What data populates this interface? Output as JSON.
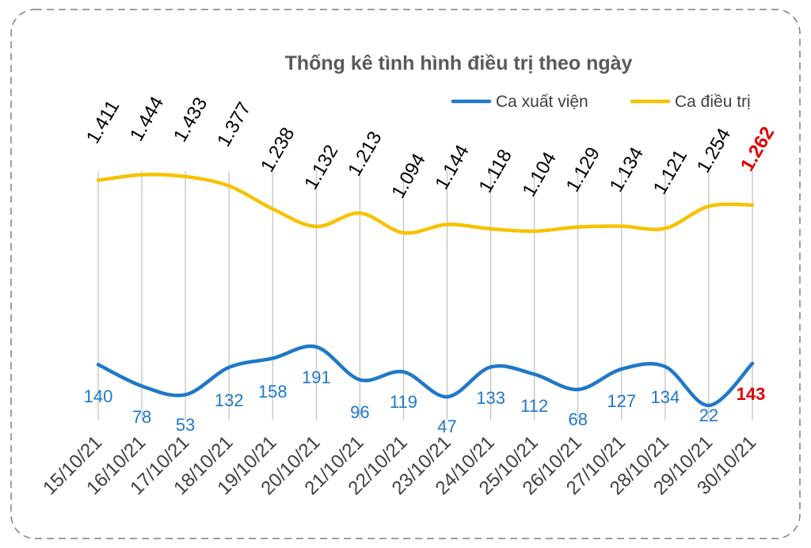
{
  "chart_data": {
    "type": "line",
    "title": "Thống kê tình hình điều trị theo ngày",
    "categories": [
      "15/10/21",
      "16/10/21",
      "17/10/21",
      "18/10/21",
      "19/10/21",
      "20/10/21",
      "21/10/21",
      "22/10/21",
      "23/10/21",
      "24/10/21",
      "25/10/21",
      "26/10/21",
      "27/10/21",
      "28/10/21",
      "29/10/21",
      "30/10/21"
    ],
    "series": [
      {
        "name": "Ca xuất viện",
        "color": "#1f78c8",
        "values": [
          140,
          78,
          53,
          132,
          158,
          191,
          96,
          119,
          47,
          133,
          112,
          68,
          127,
          134,
          22,
          143
        ],
        "labels": [
          "140",
          "78",
          "53",
          "132",
          "158",
          "191",
          "96",
          "119",
          "47",
          "133",
          "112",
          "68",
          "127",
          "134",
          "22",
          "143"
        ]
      },
      {
        "name": "Ca điều trị",
        "color": "#f6c200",
        "values": [
          1411,
          1444,
          1433,
          1377,
          1238,
          1132,
          1213,
          1094,
          1144,
          1118,
          1104,
          1129,
          1134,
          1121,
          1254,
          1262
        ],
        "labels": [
          "1.411",
          "1.444",
          "1.433",
          "1.377",
          "1.238",
          "1.132",
          "1.213",
          "1.094",
          "1.144",
          "1.118",
          "1.104",
          "1.129",
          "1.134",
          "1.121",
          "1.254",
          "1.262"
        ]
      }
    ],
    "highlight_color": "#e00000",
    "grid": "vertical",
    "legend_position": "top-right"
  }
}
